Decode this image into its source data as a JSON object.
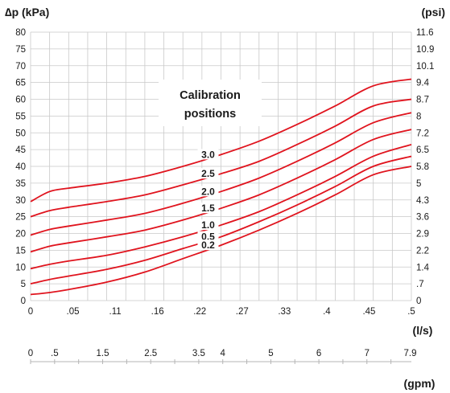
{
  "chart_data": {
    "type": "line",
    "ylabel_left": "∆p (kPa)",
    "ylabel_right": "(psi)",
    "xlabel_primary": "(l/s)",
    "xlabel_secondary": "(gpm)",
    "legend_title_line1": "Calibration",
    "legend_title_line2": "positions",
    "line_color": "#e0141e",
    "grid": true,
    "ylim": [
      0,
      80
    ],
    "xlim": [
      0,
      0.5
    ],
    "y_ticks_left": [
      "0",
      "5",
      "10",
      "15",
      "20",
      "25",
      "30",
      "35",
      "40",
      "45",
      "50",
      "55",
      "60",
      "65",
      "70",
      "75",
      "80"
    ],
    "y_ticks_right": [
      "0",
      ".7",
      "1.4",
      "2.2",
      "2.9",
      "3.6",
      "4.3",
      "5",
      "5.8",
      "6.5",
      "7.2",
      "8",
      "8.7",
      "9.4",
      "10.1",
      "10.9",
      "11.6"
    ],
    "x_ticks": [
      "0",
      ".05",
      ".11",
      ".16",
      ".22",
      ".27",
      ".33",
      ".4",
      ".45",
      ".5"
    ],
    "gpm_ticks": [
      "0",
      ".5",
      "1.5",
      "2.5",
      "3.5",
      "4",
      "5",
      "6",
      "7",
      "7.9"
    ],
    "series": [
      {
        "name": "3.0",
        "x": [
          0,
          0.025,
          0.05,
          0.1,
          0.15,
          0.2,
          0.25,
          0.3,
          0.35,
          0.4,
          0.45,
          0.5
        ],
        "y": [
          29.5,
          32.5,
          33.5,
          35,
          37,
          40,
          43.5,
          47.5,
          52.5,
          58,
          64,
          66
        ]
      },
      {
        "name": "2.5",
        "x": [
          0,
          0.025,
          0.05,
          0.1,
          0.15,
          0.2,
          0.25,
          0.3,
          0.35,
          0.4,
          0.45,
          0.5
        ],
        "y": [
          25,
          26.8,
          27.8,
          29.5,
          31.5,
          34.5,
          37.8,
          41.5,
          46.5,
          52,
          58,
          60
        ]
      },
      {
        "name": "2.0",
        "x": [
          0,
          0.025,
          0.05,
          0.1,
          0.15,
          0.2,
          0.25,
          0.3,
          0.35,
          0.4,
          0.45,
          0.5
        ],
        "y": [
          19.5,
          21.2,
          22.2,
          24,
          26,
          29,
          32.5,
          36.5,
          41.5,
          47,
          53,
          56
        ]
      },
      {
        "name": "1.5",
        "x": [
          0,
          0.025,
          0.05,
          0.1,
          0.15,
          0.2,
          0.25,
          0.3,
          0.35,
          0.4,
          0.45,
          0.5
        ],
        "y": [
          14.5,
          16.2,
          17.2,
          19,
          21,
          24,
          27.5,
          31.5,
          36.5,
          42,
          48,
          51
        ]
      },
      {
        "name": "1.0",
        "x": [
          0,
          0.025,
          0.05,
          0.1,
          0.15,
          0.2,
          0.25,
          0.3,
          0.35,
          0.4,
          0.45,
          0.5
        ],
        "y": [
          9.5,
          10.8,
          11.8,
          13.5,
          16,
          19,
          22.5,
          26.5,
          31.5,
          37,
          43,
          46.5
        ]
      },
      {
        "name": "0.5",
        "x": [
          0,
          0.025,
          0.05,
          0.1,
          0.15,
          0.2,
          0.25,
          0.3,
          0.35,
          0.4,
          0.45,
          0.5
        ],
        "y": [
          5,
          6.3,
          7.3,
          9.3,
          12,
          15.5,
          19,
          23.5,
          28.5,
          34,
          40,
          43
        ]
      },
      {
        "name": "0.2",
        "x": [
          0,
          0.025,
          0.05,
          0.1,
          0.15,
          0.2,
          0.25,
          0.3,
          0.35,
          0.4,
          0.45,
          0.5
        ],
        "y": [
          1.8,
          2.4,
          3.3,
          5.5,
          8.5,
          12.5,
          16.5,
          21,
          26,
          31.5,
          37.5,
          40
        ]
      }
    ]
  }
}
